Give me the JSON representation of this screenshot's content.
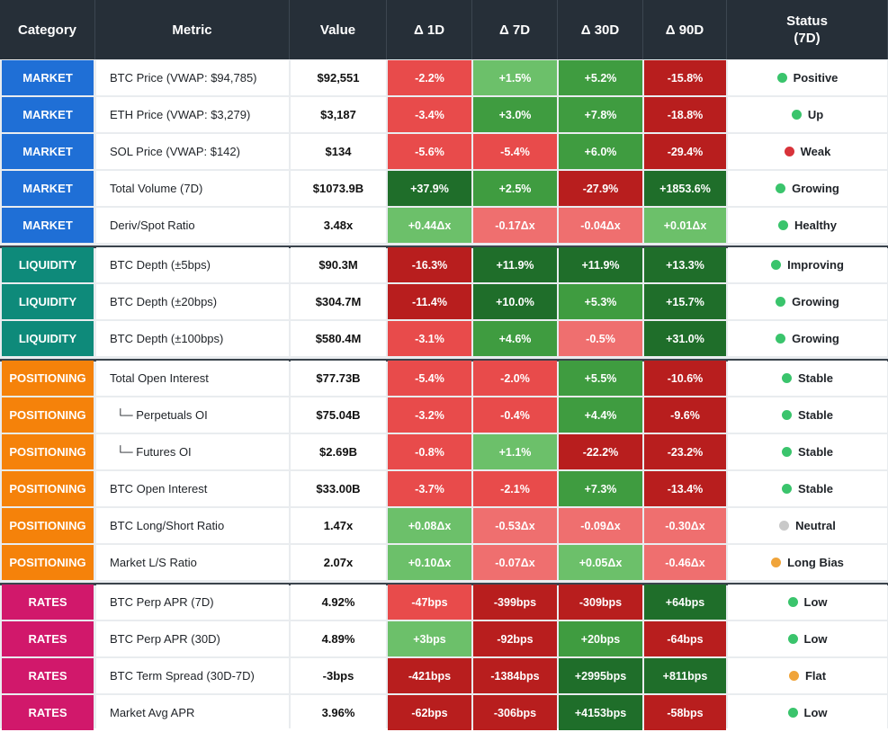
{
  "headers": [
    "Category",
    "Metric",
    "Value",
    "Δ 1D",
    "Δ 7D",
    "Δ 30D",
    "Δ 90D",
    "Status\n(7D)"
  ],
  "category_colors": {
    "MARKET": "#1f6fd6",
    "LIQUIDITY": "#0e8a7a",
    "POSITIONING": "#f5820a",
    "RATES": "#d1186b"
  },
  "cell_colors": {
    "dark_red": "#b81e1e",
    "red": "#e84b4b",
    "light_red": "#ef6f6f",
    "dark_green": "#1f6e2a",
    "green": "#3f9c40",
    "light_green": "#6cc06a"
  },
  "status_colors": {
    "green": "#3ac46c",
    "red": "#d8333a",
    "gray": "#c9c9c9",
    "orange": "#f0a43a"
  },
  "rows": [
    {
      "cat": "MARKET",
      "metric": "BTC Price (VWAP: $94,785)",
      "value": "$92,551",
      "d": [
        [
          "-2.2%",
          "red"
        ],
        [
          "+1.5%",
          "light_green"
        ],
        [
          "+5.2%",
          "green"
        ],
        [
          "-15.8%",
          "dark_red"
        ]
      ],
      "status": "Positive",
      "dot": "green"
    },
    {
      "cat": "MARKET",
      "metric": "ETH Price (VWAP: $3,279)",
      "value": "$3,187",
      "d": [
        [
          "-3.4%",
          "red"
        ],
        [
          "+3.0%",
          "green"
        ],
        [
          "+7.8%",
          "green"
        ],
        [
          "-18.8%",
          "dark_red"
        ]
      ],
      "status": "Up",
      "dot": "green"
    },
    {
      "cat": "MARKET",
      "metric": "SOL Price (VWAP: $142)",
      "value": "$134",
      "d": [
        [
          "-5.6%",
          "red"
        ],
        [
          "-5.4%",
          "red"
        ],
        [
          "+6.0%",
          "green"
        ],
        [
          "-29.4%",
          "dark_red"
        ]
      ],
      "status": "Weak",
      "dot": "red"
    },
    {
      "cat": "MARKET",
      "metric": "Total Volume (7D)",
      "value": "$1073.9B",
      "d": [
        [
          "+37.9%",
          "dark_green"
        ],
        [
          "+2.5%",
          "green"
        ],
        [
          "-27.9%",
          "dark_red"
        ],
        [
          "+1853.6%",
          "dark_green"
        ]
      ],
      "status": "Growing",
      "dot": "green"
    },
    {
      "cat": "MARKET",
      "metric": "Deriv/Spot Ratio",
      "value": "3.48x",
      "d": [
        [
          "+0.44Δx",
          "light_green"
        ],
        [
          "-0.17Δx",
          "light_red"
        ],
        [
          "-0.04Δx",
          "light_red"
        ],
        [
          "+0.01Δx",
          "light_green"
        ]
      ],
      "status": "Healthy",
      "dot": "green"
    },
    {
      "cat": "LIQUIDITY",
      "metric": "BTC Depth (±5bps)",
      "value": "$90.3M",
      "d": [
        [
          "-16.3%",
          "dark_red"
        ],
        [
          "+11.9%",
          "dark_green"
        ],
        [
          "+11.9%",
          "dark_green"
        ],
        [
          "+13.3%",
          "dark_green"
        ]
      ],
      "status": "Improving",
      "dot": "green"
    },
    {
      "cat": "LIQUIDITY",
      "metric": "BTC Depth (±20bps)",
      "value": "$304.7M",
      "d": [
        [
          "-11.4%",
          "dark_red"
        ],
        [
          "+10.0%",
          "dark_green"
        ],
        [
          "+5.3%",
          "green"
        ],
        [
          "+15.7%",
          "dark_green"
        ]
      ],
      "status": "Growing",
      "dot": "green"
    },
    {
      "cat": "LIQUIDITY",
      "metric": "BTC Depth (±100bps)",
      "value": "$580.4M",
      "d": [
        [
          "-3.1%",
          "red"
        ],
        [
          "+4.6%",
          "green"
        ],
        [
          "-0.5%",
          "light_red"
        ],
        [
          "+31.0%",
          "dark_green"
        ]
      ],
      "status": "Growing",
      "dot": "green"
    },
    {
      "cat": "POSITIONING",
      "metric": "Total Open Interest",
      "value": "$77.73B",
      "d": [
        [
          "-5.4%",
          "red"
        ],
        [
          "-2.0%",
          "red"
        ],
        [
          "+5.5%",
          "green"
        ],
        [
          "-10.6%",
          "dark_red"
        ]
      ],
      "status": "Stable",
      "dot": "green"
    },
    {
      "cat": "POSITIONING",
      "metric": "  └─ Perpetuals OI",
      "value": "$75.04B",
      "d": [
        [
          "-3.2%",
          "red"
        ],
        [
          "-0.4%",
          "red"
        ],
        [
          "+4.4%",
          "green"
        ],
        [
          "-9.6%",
          "dark_red"
        ]
      ],
      "status": "Stable",
      "dot": "green"
    },
    {
      "cat": "POSITIONING",
      "metric": "  └─ Futures OI",
      "value": "$2.69B",
      "d": [
        [
          "-0.8%",
          "red"
        ],
        [
          "+1.1%",
          "light_green"
        ],
        [
          "-22.2%",
          "dark_red"
        ],
        [
          "-23.2%",
          "dark_red"
        ]
      ],
      "status": "Stable",
      "dot": "green"
    },
    {
      "cat": "POSITIONING",
      "metric": "BTC Open Interest",
      "value": "$33.00B",
      "d": [
        [
          "-3.7%",
          "red"
        ],
        [
          "-2.1%",
          "red"
        ],
        [
          "+7.3%",
          "green"
        ],
        [
          "-13.4%",
          "dark_red"
        ]
      ],
      "status": "Stable",
      "dot": "green"
    },
    {
      "cat": "POSITIONING",
      "metric": "BTC Long/Short Ratio",
      "value": "1.47x",
      "d": [
        [
          "+0.08Δx",
          "light_green"
        ],
        [
          "-0.53Δx",
          "light_red"
        ],
        [
          "-0.09Δx",
          "light_red"
        ],
        [
          "-0.30Δx",
          "light_red"
        ]
      ],
      "status": "Neutral",
      "dot": "gray"
    },
    {
      "cat": "POSITIONING",
      "metric": "Market L/S Ratio",
      "value": "2.07x",
      "d": [
        [
          "+0.10Δx",
          "light_green"
        ],
        [
          "-0.07Δx",
          "light_red"
        ],
        [
          "+0.05Δx",
          "light_green"
        ],
        [
          "-0.46Δx",
          "light_red"
        ]
      ],
      "status": "Long Bias",
      "dot": "orange"
    },
    {
      "cat": "RATES",
      "metric": "BTC Perp APR (7D)",
      "value": "4.92%",
      "d": [
        [
          "-47bps",
          "red"
        ],
        [
          "-399bps",
          "dark_red"
        ],
        [
          "-309bps",
          "dark_red"
        ],
        [
          "+64bps",
          "dark_green"
        ]
      ],
      "status": "Low",
      "dot": "green"
    },
    {
      "cat": "RATES",
      "metric": "BTC Perp APR (30D)",
      "value": "4.89%",
      "d": [
        [
          "+3bps",
          "light_green"
        ],
        [
          "-92bps",
          "dark_red"
        ],
        [
          "+20bps",
          "green"
        ],
        [
          "-64bps",
          "dark_red"
        ]
      ],
      "status": "Low",
      "dot": "green"
    },
    {
      "cat": "RATES",
      "metric": "BTC Term Spread (30D-7D)",
      "value": "-3bps",
      "d": [
        [
          "-421bps",
          "dark_red"
        ],
        [
          "-1384bps",
          "dark_red"
        ],
        [
          "+2995bps",
          "dark_green"
        ],
        [
          "+811bps",
          "dark_green"
        ]
      ],
      "status": "Flat",
      "dot": "orange"
    },
    {
      "cat": "RATES",
      "metric": "Market Avg APR",
      "value": "3.96%",
      "d": [
        [
          "-62bps",
          "dark_red"
        ],
        [
          "-306bps",
          "dark_red"
        ],
        [
          "+4153bps",
          "dark_green"
        ],
        [
          "-58bps",
          "dark_red"
        ]
      ],
      "status": "Low",
      "dot": "green"
    }
  ]
}
